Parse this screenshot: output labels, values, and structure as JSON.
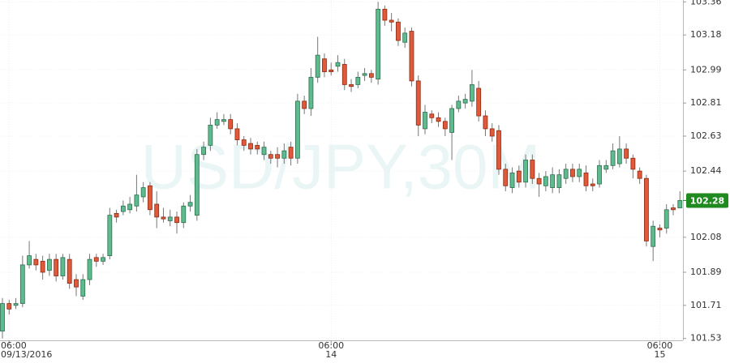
{
  "chart_data": {
    "type": "candlestick",
    "title": "USD/JPY,30M",
    "x_labels": [
      {
        "index": 1,
        "time": "06:00",
        "date": "09/13/2016"
      },
      {
        "index": 49,
        "time": "06:00",
        "date": "14"
      },
      {
        "index": 98,
        "time": "06:00",
        "date": "15"
      }
    ],
    "open": [
      101.57,
      101.72,
      101.71,
      101.72,
      101.93,
      101.96,
      101.95,
      101.9,
      101.96,
      101.87,
      101.96,
      101.85,
      101.76,
      101.85,
      101.97,
      101.95,
      101.98,
      102.21,
      102.22,
      102.23,
      102.25,
      102.3,
      102.36,
      102.26,
      102.19,
      102.17,
      102.19,
      102.16,
      102.25,
      102.2,
      102.53,
      102.58,
      102.69,
      102.71,
      102.72,
      102.67,
      102.61,
      102.59,
      102.58,
      102.53,
      102.53,
      102.53,
      102.51,
      102.57,
      102.51,
      102.82,
      102.78,
      102.95,
      103.05,
      102.99,
      103.01,
      103.02,
      102.91,
      102.91,
      102.96,
      102.97,
      102.94,
      103.32,
      103.26,
      103.25,
      103.14,
      103.2,
      102.93,
      102.67,
      102.75,
      102.73,
      102.71,
      102.65,
      102.78,
      102.81,
      102.82,
      102.89,
      102.74,
      102.67,
      102.66,
      102.45,
      102.35,
      102.44,
      102.38,
      102.5,
      102.4,
      102.36,
      102.35,
      102.35,
      102.4,
      102.45,
      102.41,
      102.43,
      102.37,
      102.37,
      102.45,
      102.47,
      102.48,
      102.56,
      102.51,
      102.44,
      102.4,
      102.03,
      102.13,
      102.13,
      102.24,
      102.24
    ],
    "high": [
      101.75,
      101.74,
      101.75,
      101.98,
      102.06,
      101.99,
      101.98,
      101.99,
      101.99,
      101.99,
      101.99,
      101.88,
      101.88,
      101.99,
      101.99,
      101.99,
      102.24,
      102.23,
      102.28,
      102.3,
      102.42,
      102.38,
      102.38,
      102.33,
      102.24,
      102.23,
      102.22,
      102.27,
      102.31,
      102.56,
      102.6,
      102.73,
      102.76,
      102.75,
      102.75,
      102.7,
      102.63,
      102.62,
      102.6,
      102.6,
      102.55,
      102.57,
      102.59,
      102.6,
      102.86,
      102.85,
      103.0,
      103.17,
      103.08,
      103.03,
      103.07,
      103.05,
      102.94,
      102.98,
      103.0,
      102.99,
      103.36,
      103.34,
      103.3,
      103.27,
      103.22,
      103.22,
      102.96,
      102.8,
      102.77,
      102.76,
      102.73,
      102.8,
      102.85,
      102.86,
      102.99,
      102.93,
      102.77,
      102.7,
      102.69,
      102.48,
      102.46,
      102.47,
      102.53,
      102.53,
      102.43,
      102.44,
      102.46,
      102.45,
      102.48,
      102.48,
      102.48,
      102.47,
      102.4,
      102.5,
      102.5,
      102.59,
      102.63,
      102.59,
      102.53,
      102.46,
      102.42,
      102.17,
      102.15,
      102.26,
      102.26,
      102.33
    ],
    "low": [
      101.53,
      101.66,
      101.69,
      101.7,
      101.91,
      101.9,
      101.85,
      101.87,
      101.84,
      101.85,
      101.8,
      101.76,
      101.74,
      101.82,
      101.92,
      101.93,
      101.96,
      102.16,
      102.2,
      102.21,
      102.22,
      102.27,
      102.2,
      102.13,
      102.16,
      102.14,
      102.1,
      102.13,
      102.22,
      102.17,
      102.5,
      102.55,
      102.67,
      102.69,
      102.64,
      102.58,
      102.55,
      102.53,
      102.53,
      102.5,
      102.48,
      102.46,
      102.48,
      102.47,
      102.48,
      102.75,
      102.74,
      102.92,
      102.95,
      102.96,
      102.98,
      102.88,
      102.87,
      102.89,
      102.93,
      102.92,
      102.91,
      103.23,
      103.2,
      103.12,
      103.11,
      102.9,
      102.63,
      102.64,
      102.7,
      102.68,
      102.63,
      102.5,
      102.76,
      102.78,
      102.79,
      102.71,
      102.63,
      102.6,
      102.42,
      102.33,
      102.32,
      102.35,
      102.35,
      102.37,
      102.3,
      102.33,
      102.32,
      102.32,
      102.37,
      102.38,
      102.38,
      102.33,
      102.33,
      102.35,
      102.43,
      102.45,
      102.46,
      102.48,
      102.4,
      102.37,
      102.03,
      101.95,
      102.08,
      102.1,
      102.2,
      102.24
    ],
    "close": [
      101.72,
      101.69,
      101.72,
      101.93,
      101.98,
      101.93,
      101.89,
      101.96,
      101.87,
      101.97,
      101.83,
      101.81,
      101.85,
      101.96,
      101.95,
      101.97,
      102.2,
      102.19,
      102.25,
      102.26,
      102.31,
      102.35,
      102.23,
      102.19,
      102.18,
      102.19,
      102.16,
      102.25,
      102.27,
      102.53,
      102.57,
      102.69,
      102.72,
      102.72,
      102.67,
      102.61,
      102.58,
      102.56,
      102.56,
      102.57,
      102.51,
      102.51,
      102.55,
      102.51,
      102.82,
      102.78,
      102.95,
      103.07,
      102.98,
      102.98,
      103.03,
      102.91,
      102.9,
      102.95,
      102.97,
      102.95,
      103.32,
      103.26,
      103.25,
      103.15,
      103.19,
      102.93,
      102.69,
      102.76,
      102.73,
      102.71,
      102.67,
      102.78,
      102.82,
      102.83,
      102.91,
      102.74,
      102.67,
      102.63,
      102.45,
      102.36,
      102.43,
      102.38,
      102.5,
      102.4,
      102.37,
      102.41,
      102.42,
      102.42,
      102.45,
      102.41,
      102.45,
      102.36,
      102.36,
      102.47,
      102.47,
      102.55,
      102.56,
      102.51,
      102.45,
      102.4,
      102.06,
      102.14,
      102.12,
      102.23,
      102.23,
      102.28
    ],
    "up_color": "#5dbb8e",
    "down_color": "#e05a3a",
    "last_price": 102.28,
    "last_price_color": "#1f8a1f",
    "ylim": [
      101.52,
      103.37
    ],
    "yticks": [
      101.53,
      101.71,
      101.89,
      102.08,
      102.44,
      102.63,
      102.81,
      102.99,
      103.18,
      103.36
    ],
    "grid": true
  }
}
